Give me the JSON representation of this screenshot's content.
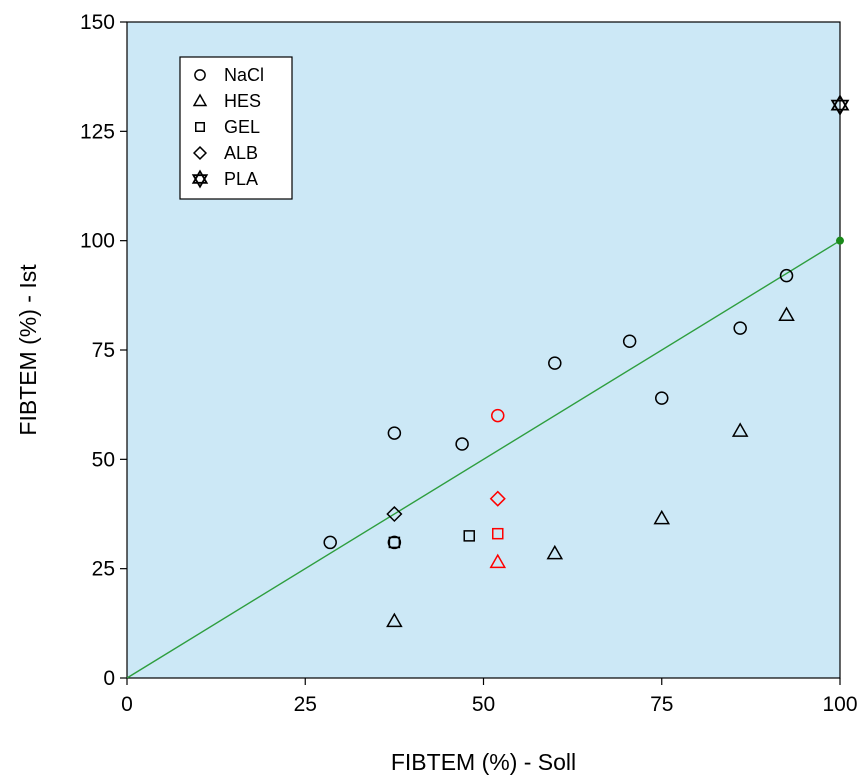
{
  "chart_data": {
    "type": "scatter",
    "xlabel": "FIBTEM (%) - Soll",
    "ylabel": "FIBTEM (%) - Ist",
    "xlim": [
      0,
      100
    ],
    "ylim": [
      0,
      150
    ],
    "xticks": [
      0,
      25,
      50,
      75,
      100
    ],
    "yticks": [
      0,
      25,
      50,
      75,
      100,
      125,
      150
    ],
    "grid": false,
    "background_color": "#cce8f6",
    "legend_position": "top-left",
    "legend": [
      {
        "label": "NaCl",
        "marker": "circle"
      },
      {
        "label": "HES",
        "marker": "triangle"
      },
      {
        "label": "GEL",
        "marker": "square"
      },
      {
        "label": "ALB",
        "marker": "diamond"
      },
      {
        "label": "PLA",
        "marker": "star"
      }
    ],
    "series": [
      {
        "marker": "circle",
        "points": [
          {
            "x": 28.5,
            "y": 31,
            "color": "#000000"
          },
          {
            "x": 37.5,
            "y": 56,
            "color": "#000000"
          },
          {
            "x": 37.5,
            "y": 31,
            "color": "#000000"
          },
          {
            "x": 47,
            "y": 53.5,
            "color": "#000000"
          },
          {
            "x": 52,
            "y": 60,
            "color": "#ff0000"
          },
          {
            "x": 60,
            "y": 72,
            "color": "#000000"
          },
          {
            "x": 70.5,
            "y": 77,
            "color": "#000000"
          },
          {
            "x": 75,
            "y": 64,
            "color": "#000000"
          },
          {
            "x": 86,
            "y": 80,
            "color": "#000000"
          },
          {
            "x": 92.5,
            "y": 92,
            "color": "#000000"
          }
        ]
      },
      {
        "marker": "triangle",
        "points": [
          {
            "x": 37.5,
            "y": 13,
            "color": "#000000"
          },
          {
            "x": 52,
            "y": 26.5,
            "color": "#ff0000"
          },
          {
            "x": 60,
            "y": 28.5,
            "color": "#000000"
          },
          {
            "x": 75,
            "y": 36.5,
            "color": "#000000"
          },
          {
            "x": 86,
            "y": 56.5,
            "color": "#000000"
          },
          {
            "x": 92.5,
            "y": 83,
            "color": "#000000"
          }
        ]
      },
      {
        "marker": "square",
        "points": [
          {
            "x": 37.5,
            "y": 31,
            "color": "#000000"
          },
          {
            "x": 48,
            "y": 32.5,
            "color": "#000000"
          },
          {
            "x": 52,
            "y": 33,
            "color": "#ff0000"
          }
        ]
      },
      {
        "marker": "diamond",
        "points": [
          {
            "x": 37.5,
            "y": 37.5,
            "color": "#000000"
          },
          {
            "x": 52,
            "y": 41,
            "color": "#ff0000"
          }
        ]
      },
      {
        "marker": "star",
        "points": [
          {
            "x": 100,
            "y": 131,
            "color": "#000000"
          }
        ]
      }
    ],
    "reference_line": {
      "from": [
        0,
        0
      ],
      "to": [
        100,
        100
      ],
      "color": "#2e9e3e",
      "end_dot": [
        100,
        100
      ],
      "end_dot_color": "#1a8a1a"
    }
  }
}
